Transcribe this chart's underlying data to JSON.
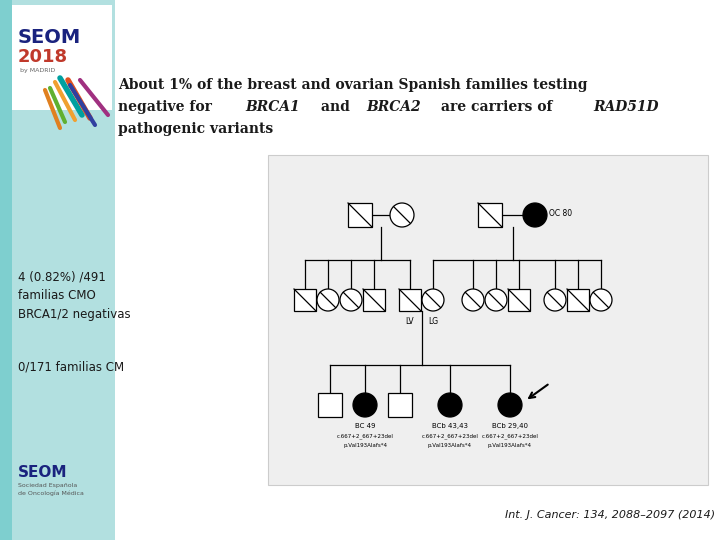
{
  "background_color": "#ffffff",
  "text_color": "#1a1a1a",
  "title_line1": "About 1% of the breast and ovarian Spanish families testing",
  "title_line2_parts": [
    [
      "negative for ",
      false
    ],
    [
      "BRCA1",
      true
    ],
    [
      " and ",
      false
    ],
    [
      "BRCA2",
      true
    ],
    [
      " are carriers of ",
      false
    ],
    [
      "RAD51D",
      true
    ]
  ],
  "title_line3": "pathogenic variants",
  "left_text_1": "4 (0.82%) /491\nfamilias CMO\nBRCA1/2 negativas",
  "left_text_2": "0/171 familias CM",
  "bottom_right_text": "Int. J. Cancer: 134, 2088–2097 (2014)",
  "seom_blue": "#1a237e",
  "seom_red": "#c0392b",
  "teal_bg": "#7ecfcf",
  "teal_light": "#b2e0e0",
  "pedigree_bg": "#efefef",
  "pedigree_border": "#cccccc"
}
